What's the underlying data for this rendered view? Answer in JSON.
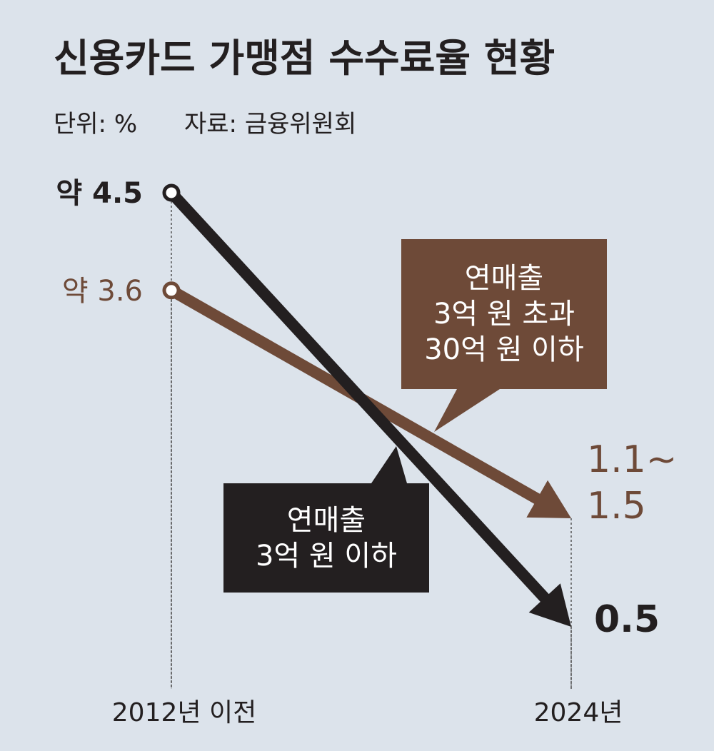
{
  "chart_data": {
    "type": "line",
    "title": "신용카드 가맹점 수수료율 현황",
    "unit": "단위: %",
    "source": "자료: 금융위원회",
    "categories": [
      "2012년 이전",
      "2024년"
    ],
    "series": [
      {
        "name": "연매출\n3억 원 이하",
        "color": "#231f20",
        "values": [
          4.5,
          0.5
        ],
        "value_labels": [
          "약 4.5",
          "0.5"
        ]
      },
      {
        "name": "연매출\n3억 원 초과\n30억 원 이하",
        "color": "#6e4a38",
        "values": [
          3.6,
          1.5
        ],
        "value_labels": [
          "약 3.6",
          "1.1~\n1.5"
        ]
      }
    ]
  }
}
